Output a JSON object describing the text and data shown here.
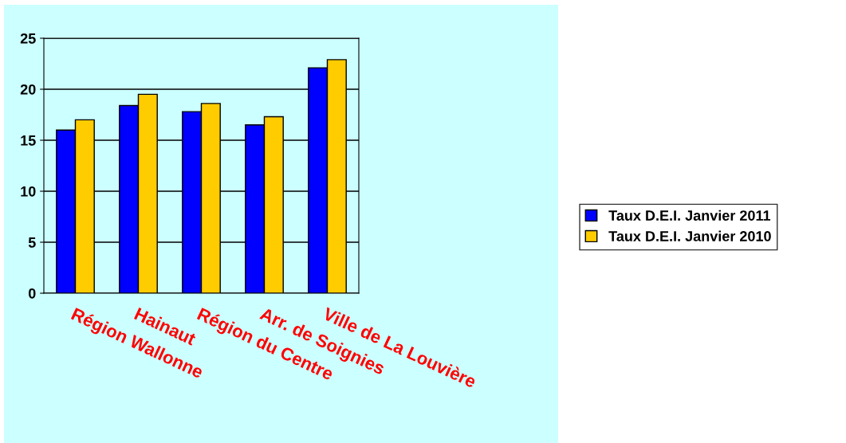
{
  "chart_data": {
    "type": "bar",
    "categories": [
      "Région Wallonne",
      "Hainaut",
      "Région du Centre",
      "Arr. de Soignies",
      "Ville de La Louvière"
    ],
    "series": [
      {
        "name": "Taux D.E.I. Janvier 2011",
        "color": "#0000ff",
        "values": [
          16.0,
          18.4,
          17.8,
          16.5,
          22.1
        ]
      },
      {
        "name": "Taux D.E.I. Janvier 2010",
        "color": "#ffcc00",
        "values": [
          17.0,
          19.5,
          18.6,
          17.3,
          22.9
        ]
      }
    ],
    "ylim": [
      0,
      25
    ],
    "yticks": [
      0,
      5,
      10,
      15,
      20,
      25
    ],
    "grid": "y",
    "legend": "right"
  }
}
